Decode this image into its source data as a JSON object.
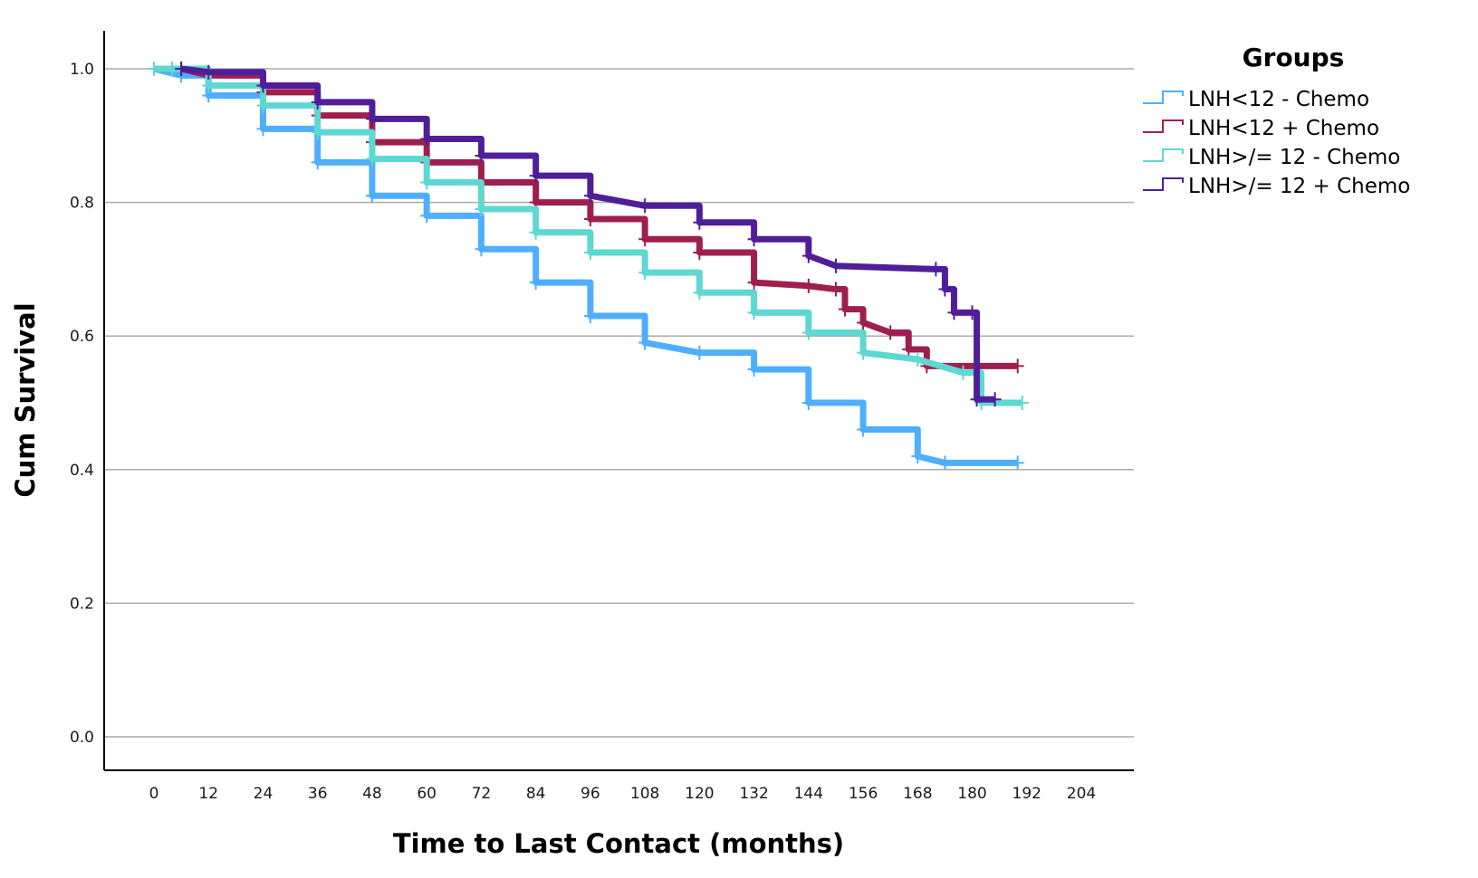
{
  "chart_data": {
    "type": "line",
    "subtype": "kaplan-meier",
    "title": "",
    "xlabel": "Time to Last Contact (months)",
    "ylabel": "Cum Survival",
    "xlim": [
      -12,
      216
    ],
    "ylim": [
      -0.05,
      1.06
    ],
    "xticks": [
      0,
      12,
      24,
      36,
      48,
      60,
      72,
      84,
      96,
      108,
      120,
      132,
      144,
      156,
      168,
      180,
      192,
      204
    ],
    "xtick_labels": [
      "0",
      "12",
      "24",
      "36",
      "48",
      "60",
      "72",
      "84",
      "96",
      "108",
      "120",
      "132",
      "144",
      "156",
      "168",
      "180",
      "192",
      "204"
    ],
    "yticks": [
      0.0,
      0.2,
      0.4,
      0.6,
      0.8,
      1.0
    ],
    "ytick_labels": [
      "0.0",
      "0.2",
      "0.4",
      "0.6",
      "0.8",
      "1.0"
    ],
    "grid": "horizontal",
    "legend": {
      "title": "Groups",
      "position": "top-right-outside"
    },
    "series": [
      {
        "name": "LNH<12 - Chemo",
        "color": "#4FAEFF",
        "x": [
          0,
          6,
          12,
          24,
          36,
          48,
          60,
          72,
          84,
          96,
          108,
          120,
          132,
          144,
          156,
          168,
          174,
          190
        ],
        "y": [
          1.0,
          0.99,
          0.96,
          0.91,
          0.86,
          0.81,
          0.78,
          0.73,
          0.68,
          0.63,
          0.59,
          0.575,
          0.55,
          0.5,
          0.46,
          0.42,
          0.41,
          0.41
        ]
      },
      {
        "name": "LNH<12 + Chemo",
        "color": "#9E1F4F",
        "x": [
          6,
          12,
          24,
          36,
          48,
          60,
          72,
          84,
          96,
          108,
          120,
          132,
          144,
          150,
          152,
          156,
          162,
          166,
          170,
          190
        ],
        "y": [
          1.0,
          0.99,
          0.965,
          0.93,
          0.89,
          0.86,
          0.83,
          0.8,
          0.775,
          0.745,
          0.725,
          0.68,
          0.675,
          0.67,
          0.64,
          0.62,
          0.605,
          0.58,
          0.555,
          0.555
        ]
      },
      {
        "name": "LNH>/= 12 - Chemo",
        "color": "#5FD7D2",
        "x": [
          0,
          4,
          12,
          24,
          36,
          48,
          60,
          72,
          84,
          96,
          108,
          120,
          132,
          144,
          156,
          168,
          178,
          182,
          191
        ],
        "y": [
          1.0,
          1.0,
          0.975,
          0.945,
          0.905,
          0.865,
          0.83,
          0.79,
          0.755,
          0.725,
          0.695,
          0.665,
          0.635,
          0.605,
          0.575,
          0.565,
          0.545,
          0.5,
          0.5
        ]
      },
      {
        "name": "LNH>/= 12 + Chemo",
        "color": "#4F1F99",
        "x": [
          6,
          12,
          24,
          36,
          48,
          60,
          72,
          84,
          96,
          108,
          120,
          132,
          144,
          150,
          172,
          174,
          176,
          180,
          181,
          185
        ],
        "y": [
          1.0,
          0.995,
          0.975,
          0.95,
          0.925,
          0.895,
          0.87,
          0.84,
          0.81,
          0.795,
          0.77,
          0.745,
          0.72,
          0.705,
          0.7,
          0.67,
          0.635,
          0.635,
          0.505,
          0.505
        ]
      }
    ]
  }
}
